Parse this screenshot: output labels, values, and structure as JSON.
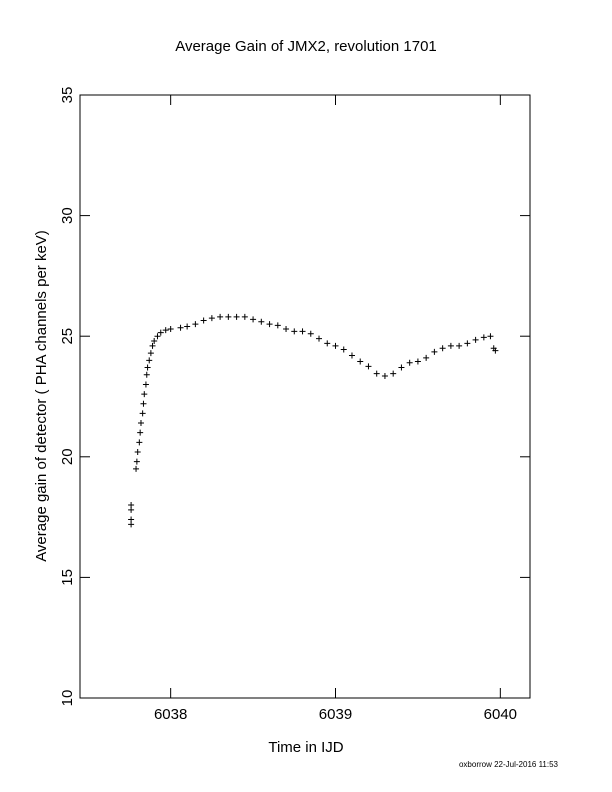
{
  "chart_data": {
    "type": "scatter",
    "title": "Average Gain of JMX2, revolution 1701",
    "x_label": "Time in IJD",
    "y_label": "Average gain of detector ( PHA channels per keV)",
    "footer": "oxborrow 22-Jul-2016 11:53",
    "marker": "plus",
    "color": "#000000",
    "xlim": [
      6037.45,
      6040.18
    ],
    "ylim": [
      10,
      35
    ],
    "xticks": [
      6038,
      6039,
      6040
    ],
    "yticks": [
      10,
      15,
      20,
      25,
      30,
      35
    ],
    "x": [
      6037.76,
      6037.76,
      6037.76,
      6037.76,
      6037.79,
      6037.795,
      6037.8,
      6037.81,
      6037.815,
      6037.82,
      6037.83,
      6037.835,
      6037.84,
      6037.85,
      6037.855,
      6037.86,
      6037.87,
      6037.88,
      6037.89,
      6037.9,
      6037.92,
      6037.94,
      6037.97,
      6038.0,
      6038.06,
      6038.1,
      6038.15,
      6038.2,
      6038.25,
      6038.3,
      6038.35,
      6038.4,
      6038.45,
      6038.5,
      6038.55,
      6038.6,
      6038.65,
      6038.7,
      6038.75,
      6038.8,
      6038.85,
      6038.9,
      6038.95,
      6039.0,
      6039.05,
      6039.1,
      6039.15,
      6039.2,
      6039.25,
      6039.3,
      6039.35,
      6039.4,
      6039.45,
      6039.5,
      6039.55,
      6039.6,
      6039.65,
      6039.7,
      6039.75,
      6039.8,
      6039.85,
      6039.9,
      6039.94,
      6039.96,
      6039.97
    ],
    "y": [
      17.2,
      17.4,
      17.8,
      18.0,
      19.5,
      19.8,
      20.2,
      20.6,
      21.0,
      21.4,
      21.8,
      22.2,
      22.6,
      23.0,
      23.4,
      23.7,
      24.0,
      24.3,
      24.6,
      24.8,
      25.0,
      25.15,
      25.25,
      25.3,
      25.35,
      25.4,
      25.5,
      25.65,
      25.75,
      25.8,
      25.8,
      25.8,
      25.8,
      25.7,
      25.6,
      25.5,
      25.45,
      25.3,
      25.2,
      25.2,
      25.1,
      24.9,
      24.7,
      24.6,
      24.45,
      24.2,
      23.95,
      23.75,
      23.45,
      23.35,
      23.45,
      23.7,
      23.9,
      23.95,
      24.1,
      24.35,
      24.5,
      24.6,
      24.6,
      24.7,
      24.85,
      24.95,
      25.0,
      24.5,
      24.4
    ]
  }
}
